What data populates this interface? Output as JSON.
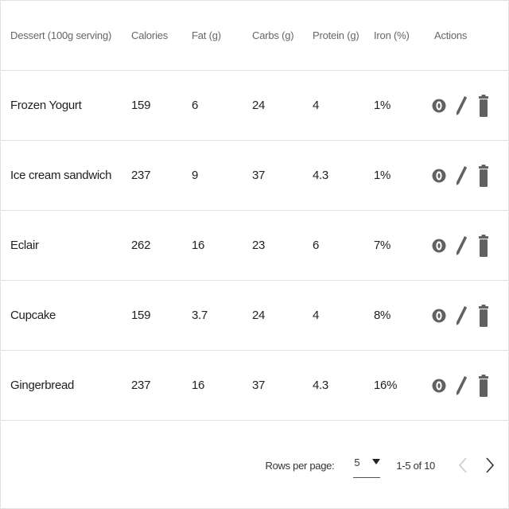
{
  "table": {
    "headers": {
      "dessert": "Dessert (100g serving)",
      "calories": "Calories",
      "fat": "Fat (g)",
      "carbs": "Carbs (g)",
      "protein": "Protein (g)",
      "iron": "Iron (%)",
      "actions": "Actions"
    },
    "rows": [
      {
        "name": "Frozen Yogurt",
        "calories": "159",
        "fat": "6",
        "carbs": "24",
        "protein": "4",
        "iron": "1%"
      },
      {
        "name": "Ice cream sandwich",
        "calories": "237",
        "fat": "9",
        "carbs": "37",
        "protein": "4.3",
        "iron": "1%"
      },
      {
        "name": "Eclair",
        "calories": "262",
        "fat": "16",
        "carbs": "23",
        "protein": "6",
        "iron": "7%"
      },
      {
        "name": "Cupcake",
        "calories": "159",
        "fat": "3.7",
        "carbs": "24",
        "protein": "4",
        "iron": "8%"
      },
      {
        "name": "Gingerbread",
        "calories": "237",
        "fat": "16",
        "carbs": "37",
        "protein": "4.3",
        "iron": "16%"
      }
    ],
    "row_actions": [
      "view-icon",
      "edit-icon",
      "delete-icon"
    ]
  },
  "pagination": {
    "rows_per_page_label": "Rows per page:",
    "rows_per_page_value": "5",
    "range_label": "1-5 of 10",
    "prev_icon": "chevron-left-icon",
    "next_icon": "chevron-right-icon"
  },
  "colors": {
    "icon": "#616161",
    "border": "#e0e0e0",
    "header_text": "#666666",
    "disabled": "#c8c8c8"
  }
}
